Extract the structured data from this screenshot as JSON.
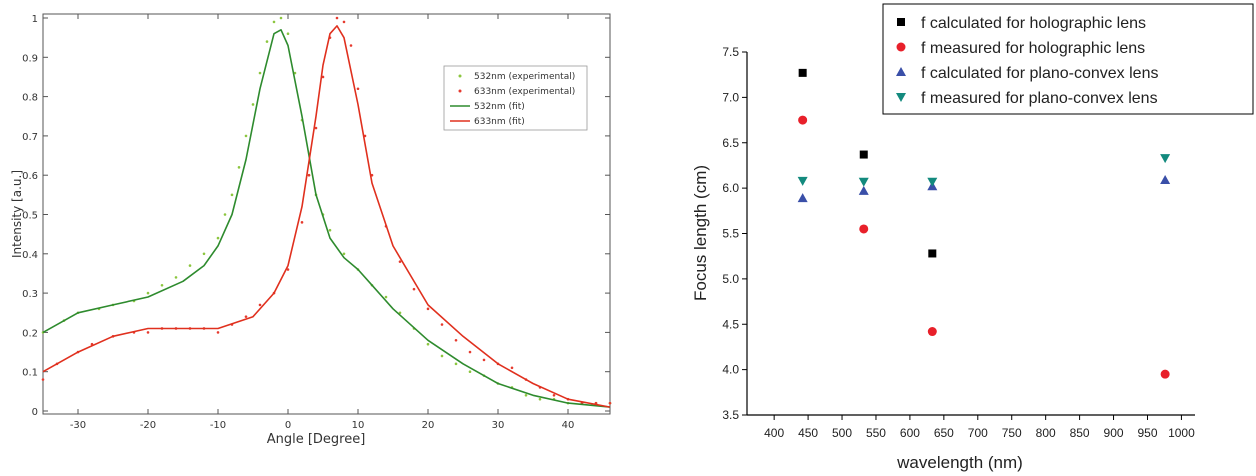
{
  "chart_data": [
    {
      "type": "line",
      "xlabel": "Angle [Degree]",
      "ylabel": "Intensity [a.u.]",
      "xlim": [
        -35,
        46
      ],
      "ylim": [
        0,
        1
      ],
      "xticks": [
        -30,
        -20,
        -10,
        0,
        10,
        20,
        30,
        40
      ],
      "yticks": [
        0,
        0.1,
        0.2,
        0.3,
        0.4,
        0.5,
        0.6,
        0.7,
        0.8,
        0.9,
        1
      ],
      "yticklabels": [
        "0",
        "0.1",
        "0.2",
        "0.3",
        "0.4",
        "0.5",
        "0.6",
        "0.7",
        "0.8",
        "0.9",
        "1"
      ],
      "grid": false,
      "legend_position": "top-right",
      "series": [
        {
          "name": "532nm (experimental)",
          "style": "dots",
          "color": "#8cc63f",
          "x": [
            -35,
            -32,
            -30,
            -27,
            -25,
            -22,
            -20,
            -18,
            -16,
            -14,
            -12,
            -10,
            -9,
            -8,
            -7,
            -6,
            -5,
            -4,
            -3,
            -2,
            -1,
            0,
            1,
            2,
            3,
            4,
            5,
            6,
            8,
            10,
            12,
            14,
            16,
            18,
            20,
            22,
            24,
            26,
            28,
            30,
            32,
            34,
            36,
            38,
            40,
            42,
            44,
            46
          ],
          "y": [
            0.2,
            0.23,
            0.25,
            0.26,
            0.27,
            0.28,
            0.3,
            0.32,
            0.34,
            0.37,
            0.4,
            0.44,
            0.5,
            0.55,
            0.62,
            0.7,
            0.78,
            0.86,
            0.94,
            0.99,
            1.0,
            0.96,
            0.86,
            0.74,
            0.6,
            0.55,
            0.5,
            0.46,
            0.4,
            0.36,
            0.32,
            0.29,
            0.25,
            0.21,
            0.17,
            0.14,
            0.12,
            0.1,
            0.09,
            0.07,
            0.06,
            0.04,
            0.03,
            0.03,
            0.02,
            0.02,
            0.02,
            0.02
          ]
        },
        {
          "name": "633nm (experimental)",
          "style": "dots",
          "color": "#e63a2e",
          "x": [
            -35,
            -33,
            -30,
            -28,
            -25,
            -22,
            -20,
            -18,
            -16,
            -14,
            -12,
            -10,
            -8,
            -6,
            -4,
            -2,
            0,
            2,
            3,
            4,
            5,
            6,
            7,
            8,
            9,
            10,
            11,
            12,
            14,
            16,
            18,
            20,
            22,
            24,
            26,
            28,
            30,
            32,
            34,
            36,
            38,
            40,
            42,
            44,
            46
          ],
          "y": [
            0.08,
            0.12,
            0.15,
            0.17,
            0.19,
            0.2,
            0.2,
            0.21,
            0.21,
            0.21,
            0.21,
            0.2,
            0.22,
            0.24,
            0.27,
            0.3,
            0.36,
            0.48,
            0.6,
            0.72,
            0.85,
            0.95,
            1.0,
            0.99,
            0.93,
            0.82,
            0.7,
            0.6,
            0.47,
            0.38,
            0.31,
            0.26,
            0.22,
            0.18,
            0.15,
            0.13,
            0.12,
            0.11,
            0.08,
            0.06,
            0.04,
            0.03,
            0.02,
            0.02,
            0.02
          ]
        },
        {
          "name": "532nm (fit)",
          "style": "line",
          "color": "#2e8b2e",
          "x": [
            -35,
            -30,
            -25,
            -20,
            -15,
            -12,
            -10,
            -8,
            -6,
            -4,
            -2,
            -1,
            0,
            2,
            4,
            6,
            8,
            10,
            12,
            15,
            20,
            25,
            30,
            35,
            40,
            46
          ],
          "y": [
            0.2,
            0.25,
            0.27,
            0.29,
            0.33,
            0.37,
            0.42,
            0.5,
            0.64,
            0.82,
            0.96,
            0.97,
            0.93,
            0.75,
            0.55,
            0.44,
            0.39,
            0.36,
            0.32,
            0.26,
            0.18,
            0.12,
            0.07,
            0.04,
            0.02,
            0.01
          ]
        },
        {
          "name": "633nm (fit)",
          "style": "line",
          "color": "#e0301e",
          "x": [
            -35,
            -30,
            -25,
            -20,
            -15,
            -10,
            -5,
            -2,
            0,
            2,
            4,
            5,
            6,
            7,
            8,
            10,
            12,
            15,
            20,
            25,
            30,
            35,
            40,
            46
          ],
          "y": [
            0.1,
            0.15,
            0.19,
            0.21,
            0.21,
            0.21,
            0.24,
            0.3,
            0.37,
            0.52,
            0.75,
            0.88,
            0.96,
            0.98,
            0.95,
            0.78,
            0.58,
            0.42,
            0.27,
            0.19,
            0.12,
            0.07,
            0.03,
            0.01
          ]
        }
      ]
    },
    {
      "type": "scatter",
      "xlabel": "wavelength (nm)",
      "ylabel": "Focus length (cm)",
      "xlim": [
        360,
        1020
      ],
      "ylim": [
        3.5,
        7.5
      ],
      "xticks": [
        400,
        450,
        500,
        550,
        600,
        650,
        700,
        750,
        800,
        850,
        900,
        950,
        1000
      ],
      "yticks": [
        3.5,
        4.0,
        4.5,
        5.0,
        5.5,
        6.0,
        6.5,
        7.0,
        7.5
      ],
      "yticklabels": [
        "3.5",
        "4.0",
        "4.5",
        "5.0",
        "5.5",
        "6.0",
        "6.5",
        "7.0",
        "7.5"
      ],
      "grid": false,
      "legend_position": "top-right",
      "series": [
        {
          "name": "f calculated for holographic lens",
          "marker": "square",
          "color": "#000000",
          "x": [
            442,
            532,
            633
          ],
          "y": [
            7.27,
            6.37,
            5.28
          ]
        },
        {
          "name": "f measured for holographic lens",
          "marker": "circle",
          "color": "#e8202a",
          "x": [
            442,
            532,
            633,
            976
          ],
          "y": [
            6.75,
            5.55,
            4.42,
            3.95
          ]
        },
        {
          "name": "f calculated for plano-convex lens",
          "marker": "triangle-up",
          "color": "#3a4fa8",
          "x": [
            442,
            532,
            633,
            976
          ],
          "y": [
            5.89,
            5.97,
            6.02,
            6.09
          ]
        },
        {
          "name": "f measured for plano-convex lens",
          "marker": "triangle-down",
          "color": "#138a7e",
          "x": [
            442,
            532,
            633,
            976
          ],
          "y": [
            6.08,
            6.07,
            6.07,
            6.33
          ]
        }
      ]
    }
  ]
}
